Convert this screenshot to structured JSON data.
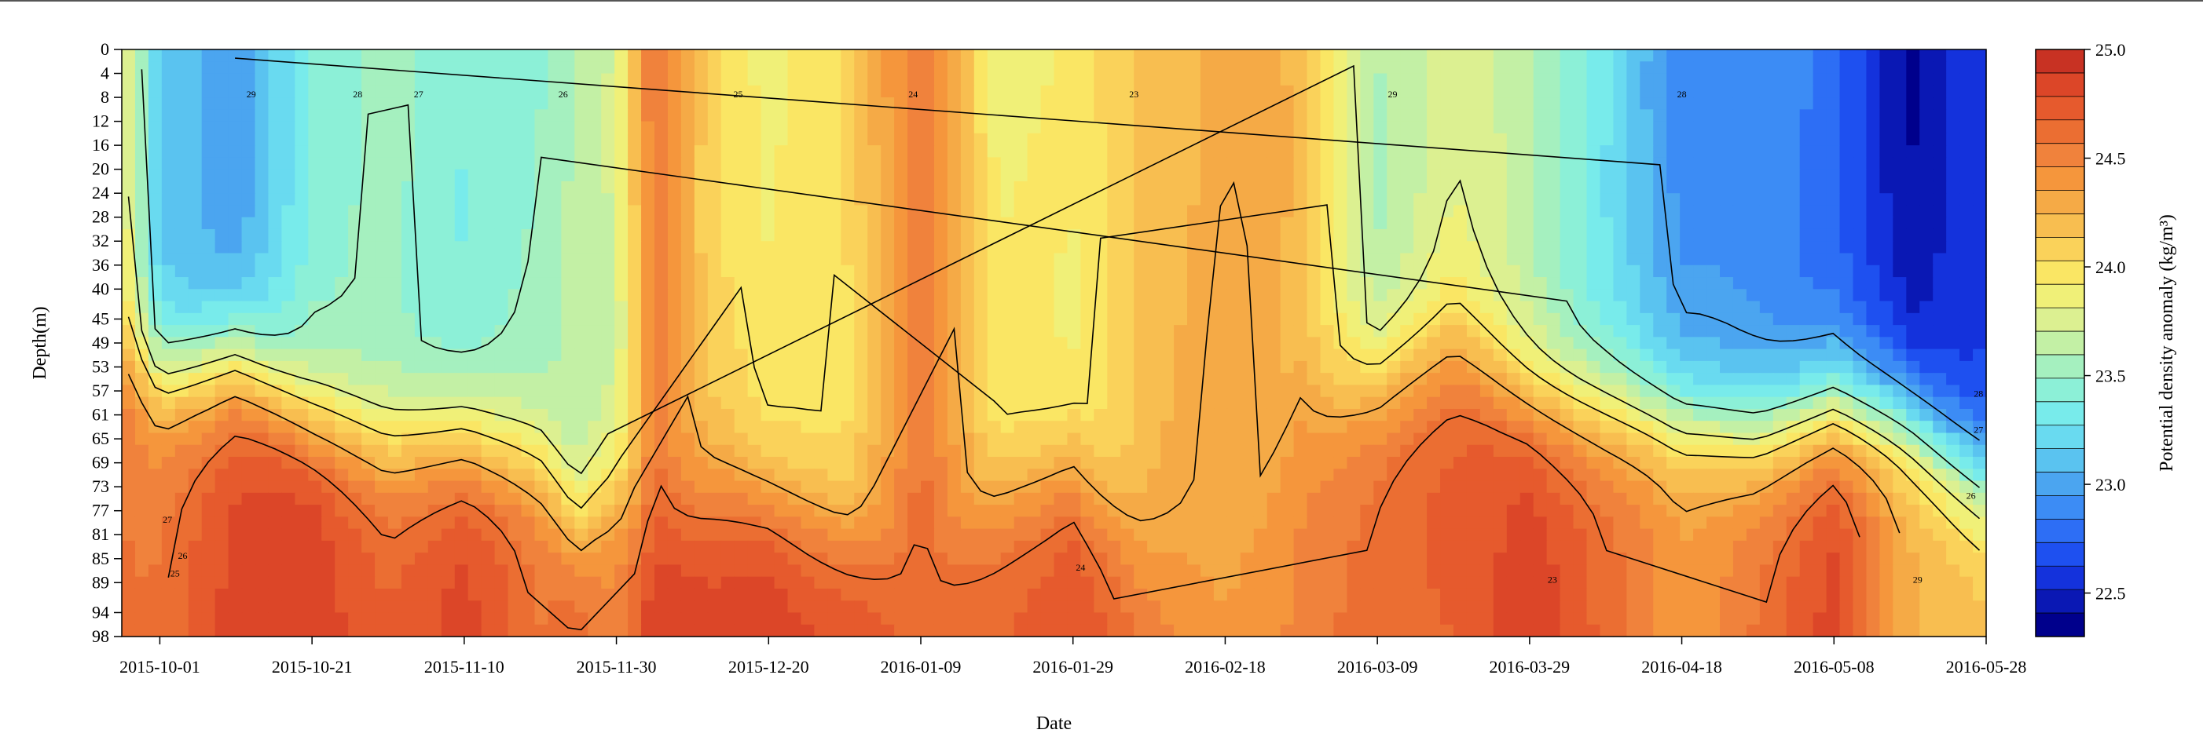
{
  "chart_data": {
    "type": "heatmap",
    "subtype": "filled-contour",
    "title": "",
    "xlabel": "Date",
    "ylabel": "Depth(m)",
    "colorbar_label": "Potential density anomaly (kg/m³)",
    "x_ticks": [
      "2015-10-01",
      "2015-10-21",
      "2015-11-10",
      "2015-11-30",
      "2015-12-20",
      "2016-01-09",
      "2016-01-29",
      "2016-02-18",
      "2016-03-09",
      "2016-03-29",
      "2016-04-18",
      "2016-05-08",
      "2016-05-28"
    ],
    "x_range": [
      "2015-09-26",
      "2016-05-28"
    ],
    "y_ticks": [
      0,
      4,
      8,
      12,
      16,
      20,
      24,
      28,
      32,
      36,
      40,
      45,
      49,
      53,
      57,
      61,
      65,
      69,
      73,
      77,
      81,
      85,
      89,
      94,
      98
    ],
    "y_range": [
      0,
      98
    ],
    "y_inverted": true,
    "colorbar_ticks": [
      "25.0",
      "24.5",
      "24.0",
      "23.5",
      "23.0",
      "22.5"
    ],
    "colorbar_range": [
      22.3,
      25.0
    ],
    "colorbar_colors": [
      "#00008c",
      "#0a18b4",
      "#1432dc",
      "#1e50f0",
      "#2d6ef5",
      "#3c8cf5",
      "#4ba5f0",
      "#5ac3f0",
      "#69daf0",
      "#78ebeb",
      "#8cf0d7",
      "#a5f0bf",
      "#c3f0a5",
      "#dcf091",
      "#f0f078",
      "#fae664",
      "#fad25a",
      "#f8be50",
      "#f5aa46",
      "#f5963c",
      "#f0823c",
      "#eb6e32",
      "#e65a2d",
      "#dc4628",
      "#c83223"
    ],
    "contour_levels_labeled": [
      "29",
      "28",
      "27",
      "26",
      "25",
      "24",
      "23"
    ],
    "profiles": [
      {
        "date": "2015-09-26",
        "surface": 23.9,
        "mixed_depth": 50,
        "deep": 24.6
      },
      {
        "date": "2015-10-01",
        "surface": 23.1,
        "mixed_depth": 55,
        "deep": 24.6
      },
      {
        "date": "2015-10-11",
        "surface": 23.0,
        "mixed_depth": 52,
        "deep": 24.8
      },
      {
        "date": "2015-10-21",
        "surface": 23.4,
        "mixed_depth": 62,
        "deep": 24.9
      },
      {
        "date": "2015-10-31",
        "surface": 23.5,
        "mixed_depth": 66,
        "deep": 24.7
      },
      {
        "date": "2015-11-10",
        "surface": 23.4,
        "mixed_depth": 65,
        "deep": 24.8
      },
      {
        "date": "2015-11-20",
        "surface": 23.5,
        "mixed_depth": 70,
        "deep": 24.6
      },
      {
        "date": "2015-11-25",
        "surface": 23.6,
        "mixed_depth": 80,
        "deep": 24.7
      },
      {
        "date": "2015-11-30",
        "surface": 23.7,
        "mixed_depth": 72,
        "deep": 24.5
      },
      {
        "date": "2015-12-05",
        "surface": 24.6,
        "mixed_depth": 82,
        "deep": 24.9
      },
      {
        "date": "2015-12-12",
        "surface": 24.1,
        "mixed_depth": 74,
        "deep": 24.8
      },
      {
        "date": "2015-12-20",
        "surface": 23.9,
        "mixed_depth": 75,
        "deep": 24.9
      },
      {
        "date": "2015-12-30",
        "surface": 24.0,
        "mixed_depth": 80,
        "deep": 24.8
      },
      {
        "date": "2016-01-09",
        "surface": 24.6,
        "mixed_depth": 85,
        "deep": 24.6
      },
      {
        "date": "2016-01-19",
        "surface": 23.9,
        "mixed_depth": 75,
        "deep": 24.7
      },
      {
        "date": "2016-01-29",
        "surface": 23.9,
        "mixed_depth": 70,
        "deep": 24.8
      },
      {
        "date": "2016-02-08",
        "surface": 24.2,
        "mixed_depth": 85,
        "deep": 24.5
      },
      {
        "date": "2016-02-18",
        "surface": 24.3,
        "mixed_depth": 90,
        "deep": 24.4
      },
      {
        "date": "2016-02-28",
        "surface": 24.2,
        "mixed_depth": 60,
        "deep": 24.5
      },
      {
        "date": "2016-03-09",
        "surface": 23.6,
        "mixed_depth": 55,
        "deep": 24.6
      },
      {
        "date": "2016-03-19",
        "surface": 23.8,
        "mixed_depth": 50,
        "deep": 24.7
      },
      {
        "date": "2016-03-29",
        "surface": 23.6,
        "mixed_depth": 58,
        "deep": 24.9
      },
      {
        "date": "2016-04-08",
        "surface": 23.3,
        "mixed_depth": 60,
        "deep": 24.6
      },
      {
        "date": "2016-04-18",
        "surface": 22.9,
        "mixed_depth": 62,
        "deep": 24.4
      },
      {
        "date": "2016-04-28",
        "surface": 22.9,
        "mixed_depth": 64,
        "deep": 24.6
      },
      {
        "date": "2016-05-08",
        "surface": 22.8,
        "mixed_depth": 60,
        "deep": 24.8
      },
      {
        "date": "2016-05-18",
        "surface": 22.4,
        "mixed_depth": 62,
        "deep": 24.3
      },
      {
        "date": "2016-05-28",
        "surface": 22.6,
        "mixed_depth": 72,
        "deep": 24.2
      }
    ]
  }
}
